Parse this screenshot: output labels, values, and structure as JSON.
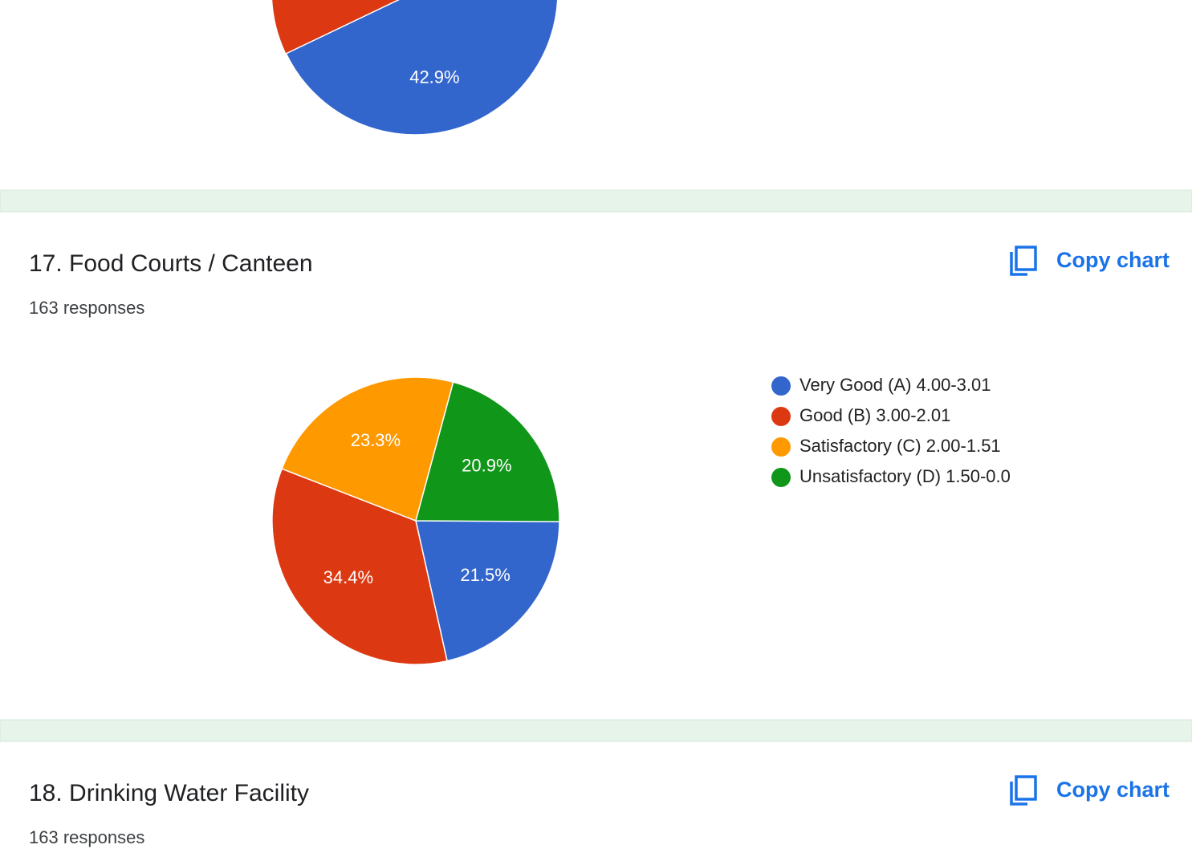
{
  "sections": [
    {
      "chart": {
        "type": "pie",
        "values": [
          42.9
        ],
        "value_labels": [
          "42.9%"
        ],
        "colors": [
          "#3366cc"
        ]
      }
    },
    {
      "title": "17. Food Courts / Canteen",
      "responses": "163 responses",
      "copy": "Copy chart",
      "chart": {
        "type": "pie",
        "categories": [
          "Very Good (A) 4.00-3.01",
          "Good (B) 3.00-2.01",
          "Satisfactory (C) 2.00-1.51",
          "Unsatisfactory (D) 1.50-0.0"
        ],
        "values": [
          21.5,
          34.4,
          23.3,
          20.9
        ],
        "value_labels": [
          "21.5%",
          "34.4%",
          "23.3%",
          "20.9%"
        ],
        "colors": [
          "#3366cc",
          "#dc3912",
          "#ff9900",
          "#109618"
        ]
      }
    },
    {
      "title": "18. Drinking Water Facility",
      "responses": "163 responses",
      "copy": "Copy chart"
    }
  ]
}
